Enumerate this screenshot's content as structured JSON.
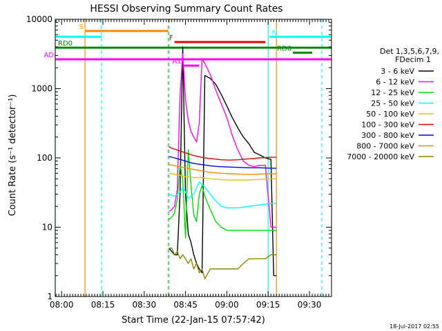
{
  "chart_data": {
    "type": "line",
    "title": "HESSI Observing Summary Count Rates",
    "xlabel": "Start Time (22-Jan-15 07:57:42)",
    "ylabel": "Count Rate (s⁻¹ detector⁻¹)",
    "footer_timestamp": "18-Jul-2017 02:55",
    "y_scale": "log",
    "ylim": [
      1,
      10000
    ],
    "xlim": [
      "07:57:42",
      "09:38:00"
    ],
    "x_ticks": [
      "08:00",
      "08:15",
      "08:30",
      "08:45",
      "09:00",
      "09:15",
      "09:30"
    ],
    "y_ticks": [
      "1",
      "10",
      "100",
      "1000",
      "10000"
    ],
    "legend": {
      "position": "right",
      "header": [
        "Det 1,3,5,6,7,9,",
        "FDecim 1"
      ],
      "entries": [
        {
          "label": "3 - 6 keV",
          "color": "#000000"
        },
        {
          "label": "6 - 12 keV",
          "color": "#ff00ff"
        },
        {
          "label": "12 - 25 keV",
          "color": "#00dd00"
        },
        {
          "label": "25 - 50 keV",
          "color": "#00ffff"
        },
        {
          "label": "50 - 100 keV",
          "color": "#e0c800"
        },
        {
          "label": "100 - 300 keV",
          "color": "#e00000"
        },
        {
          "label": "300 - 800 keV",
          "color": "#0000dd"
        },
        {
          "label": "800 - 7000 keV",
          "color": "#ff8800"
        },
        {
          "label": "7000 - 20000 keV",
          "color": "#888800"
        }
      ]
    },
    "flag_bars": [
      {
        "label": "S",
        "color": "#ff8800",
        "y": 6800,
        "segments": [
          [
            "08:08:30",
            "08:38:45"
          ]
        ],
        "label_side": "left"
      },
      {
        "label": "N",
        "color": "#00ffff",
        "y": 5600,
        "segments": [
          [
            "07:57:42",
            "08:14:30"
          ],
          [
            "09:15:30",
            "09:38:00"
          ]
        ],
        "label_side": "right"
      },
      {
        "label": "F",
        "color": "#e00000",
        "y": 4700,
        "segments": [
          [
            "08:41:00",
            "09:14:00"
          ]
        ],
        "label_side": "left"
      },
      {
        "label": "RD0",
        "color": "#008800",
        "y": 3900,
        "segments": [
          [
            "07:57:42",
            "09:38:00"
          ]
        ],
        "label_side": "right"
      },
      {
        "label": "RD6",
        "color": "#008800",
        "y": 3300,
        "segments": [
          [
            "09:24:00",
            "09:31:00"
          ]
        ],
        "label_side": "left"
      },
      {
        "label": "AD",
        "color": "#ff00ff",
        "y": 2650,
        "segments": [
          [
            "07:57:42",
            "09:38:00"
          ]
        ],
        "label_side": "left"
      },
      {
        "label": "A1",
        "color": "#ff00ff",
        "y": 2150,
        "segments": [
          [
            "08:44:00",
            "08:50:00"
          ]
        ],
        "label_side": "left"
      }
    ],
    "vertical_lines": [
      {
        "time": "07:57:42",
        "color": "#00ffff",
        "style": "solid"
      },
      {
        "time": "08:08:30",
        "color": "#ff8800",
        "style": "solid"
      },
      {
        "time": "08:14:30",
        "color": "#00ffff",
        "style": "dashed"
      },
      {
        "time": "08:38:45",
        "color": "#ff8800",
        "style": "dashed"
      },
      {
        "time": "08:39:00",
        "color": "#00ffff",
        "style": "dashed"
      },
      {
        "time": "09:15:00",
        "color": "#00ffff",
        "style": "solid"
      },
      {
        "time": "09:18:00",
        "color": "#ff8800",
        "style": "solid"
      },
      {
        "time": "09:34:30",
        "color": "#00ffff",
        "style": "dashed"
      }
    ],
    "series": [
      {
        "name": "3 - 6 keV",
        "color": "#000000",
        "x": [
          "08:39:00",
          "08:41:00",
          "08:42:00",
          "08:43:00",
          "08:44:00",
          "08:45:00",
          "08:46:00",
          "08:47:00",
          "08:48:00",
          "08:49:00",
          "08:50:00",
          "08:51:00",
          "08:52:00",
          "08:54:00",
          "08:56:00",
          "08:58:00",
          "09:00:00",
          "09:02:00",
          "09:04:00",
          "09:06:00",
          "09:08:00",
          "09:10:00",
          "09:12:00",
          "09:14:00",
          "09:16:00",
          "09:17:00",
          "09:18:00"
        ],
        "y": [
          5,
          4,
          4,
          30,
          4000,
          30,
          8,
          6,
          4,
          3,
          2.5,
          2.2,
          1550,
          1400,
          1150,
          820,
          560,
          380,
          270,
          200,
          160,
          120,
          110,
          100,
          95,
          2,
          2
        ]
      },
      {
        "name": "6 - 12 keV",
        "color": "#ff00ff",
        "x": [
          "08:39:00",
          "08:40:00",
          "08:41:00",
          "08:42:00",
          "08:43:00",
          "08:44:00",
          "08:45:00",
          "08:46:00",
          "08:47:00",
          "08:48:00",
          "08:49:00",
          "08:50:00",
          "08:51:00",
          "08:52:00",
          "08:54:00",
          "08:56:00",
          "08:58:00",
          "09:00:00",
          "09:02:00",
          "09:04:00",
          "09:06:00",
          "09:08:00",
          "09:10:00",
          "09:12:00",
          "09:14:00",
          "09:16:00",
          "09:18:00"
        ],
        "y": [
          17,
          18,
          20,
          35,
          800,
          3200,
          700,
          350,
          240,
          200,
          170,
          320,
          2700,
          2300,
          1600,
          950,
          600,
          380,
          210,
          130,
          90,
          78,
          75,
          78,
          78,
          10,
          10
        ]
      },
      {
        "name": "12 - 25 keV",
        "color": "#00dd00",
        "x": [
          "08:39:00",
          "08:40:00",
          "08:41:00",
          "08:42:00",
          "08:43:00",
          "08:44:00",
          "08:45:00",
          "08:46:00",
          "08:47:00",
          "08:48:00",
          "08:49:00",
          "08:50:00",
          "08:51:00",
          "08:52:00",
          "08:54:00",
          "08:56:00",
          "08:58:00",
          "09:00:00",
          "09:04:00",
          "09:08:00",
          "09:12:00",
          "09:16:00",
          "09:18:00"
        ],
        "y": [
          13,
          14,
          16,
          25,
          80,
          50,
          7,
          130,
          40,
          15,
          12,
          30,
          40,
          28,
          18,
          12,
          10,
          9,
          9,
          9,
          9,
          9,
          9
        ]
      },
      {
        "name": "25 - 50 keV",
        "color": "#00ffff",
        "x": [
          "08:39:00",
          "08:41:00",
          "08:43:00",
          "08:44:00",
          "08:45:00",
          "08:46:00",
          "08:48:00",
          "08:50:00",
          "08:52:00",
          "08:54:00",
          "08:56:00",
          "08:58:00",
          "09:00:00",
          "09:04:00",
          "09:08:00",
          "09:12:00",
          "09:16:00",
          "09:18:00"
        ],
        "y": [
          30,
          28,
          32,
          38,
          32,
          26,
          30,
          45,
          38,
          30,
          24,
          20,
          19,
          19,
          20,
          21,
          22,
          22
        ]
      },
      {
        "name": "50 - 100 keV",
        "color": "#e0c800",
        "x": [
          "08:39:00",
          "08:42:00",
          "08:45:00",
          "08:48:00",
          "08:51:00",
          "08:54:00",
          "08:57:00",
          "09:00:00",
          "09:04:00",
          "09:08:00",
          "09:12:00",
          "09:16:00",
          "09:18:00"
        ],
        "y": [
          60,
          57,
          54,
          52,
          52,
          50,
          49,
          48,
          48,
          48,
          49,
          50,
          50
        ]
      },
      {
        "name": "100 - 300 keV",
        "color": "#e00000",
        "x": [
          "08:39:00",
          "08:40:00",
          "08:42:00",
          "08:44:00",
          "08:46:00",
          "08:48:00",
          "08:50:00",
          "08:52:00",
          "08:55:00",
          "08:58:00",
          "09:01:00",
          "09:04:00",
          "09:08:00",
          "09:12:00",
          "09:16:00",
          "09:18:00"
        ],
        "y": [
          145,
          138,
          130,
          122,
          115,
          108,
          104,
          100,
          97,
          94,
          93,
          94,
          97,
          100,
          102,
          102
        ]
      },
      {
        "name": "300 - 800 keV",
        "color": "#0000dd",
        "x": [
          "08:39:00",
          "08:41:00",
          "08:43:00",
          "08:45:00",
          "08:47:00",
          "08:49:00",
          "08:51:00",
          "08:54:00",
          "08:57:00",
          "09:00:00",
          "09:04:00",
          "09:08:00",
          "09:12:00",
          "09:16:00",
          "09:18:00"
        ],
        "y": [
          105,
          100,
          95,
          90,
          85,
          82,
          80,
          77,
          75,
          74,
          73,
          72,
          72,
          71,
          71
        ]
      },
      {
        "name": "800 - 7000 keV",
        "color": "#ff8800",
        "x": [
          "08:39:00",
          "08:42:00",
          "08:45:00",
          "08:48:00",
          "08:51:00",
          "08:54:00",
          "08:58:00",
          "09:02:00",
          "09:06:00",
          "09:10:00",
          "09:14:00",
          "09:18:00"
        ],
        "y": [
          80,
          76,
          72,
          68,
          65,
          62,
          60,
          59,
          58,
          58,
          59,
          59
        ]
      },
      {
        "name": "7000 - 20000 keV",
        "color": "#888800",
        "x": [
          "08:39:00",
          "08:40:00",
          "08:41:00",
          "08:42:00",
          "08:43:00",
          "08:44:00",
          "08:45:00",
          "08:46:00",
          "08:47:00",
          "08:48:00",
          "08:49:00",
          "08:50:00",
          "08:51:00",
          "08:52:00",
          "08:54:00",
          "08:56:00",
          "08:58:00",
          "09:00:00",
          "09:02:00",
          "09:04:00",
          "09:06:00",
          "09:08:00",
          "09:10:00",
          "09:12:00",
          "09:14:00",
          "09:16:00",
          "09:18:00"
        ],
        "y": [
          5,
          5,
          4,
          4.5,
          3.5,
          4,
          3.5,
          3,
          3.5,
          2.5,
          3,
          2.2,
          2.5,
          1.8,
          2.5,
          2.5,
          2.5,
          2.5,
          2.5,
          2.5,
          3,
          3.5,
          3.5,
          3.5,
          3.5,
          4,
          4
        ]
      }
    ]
  }
}
